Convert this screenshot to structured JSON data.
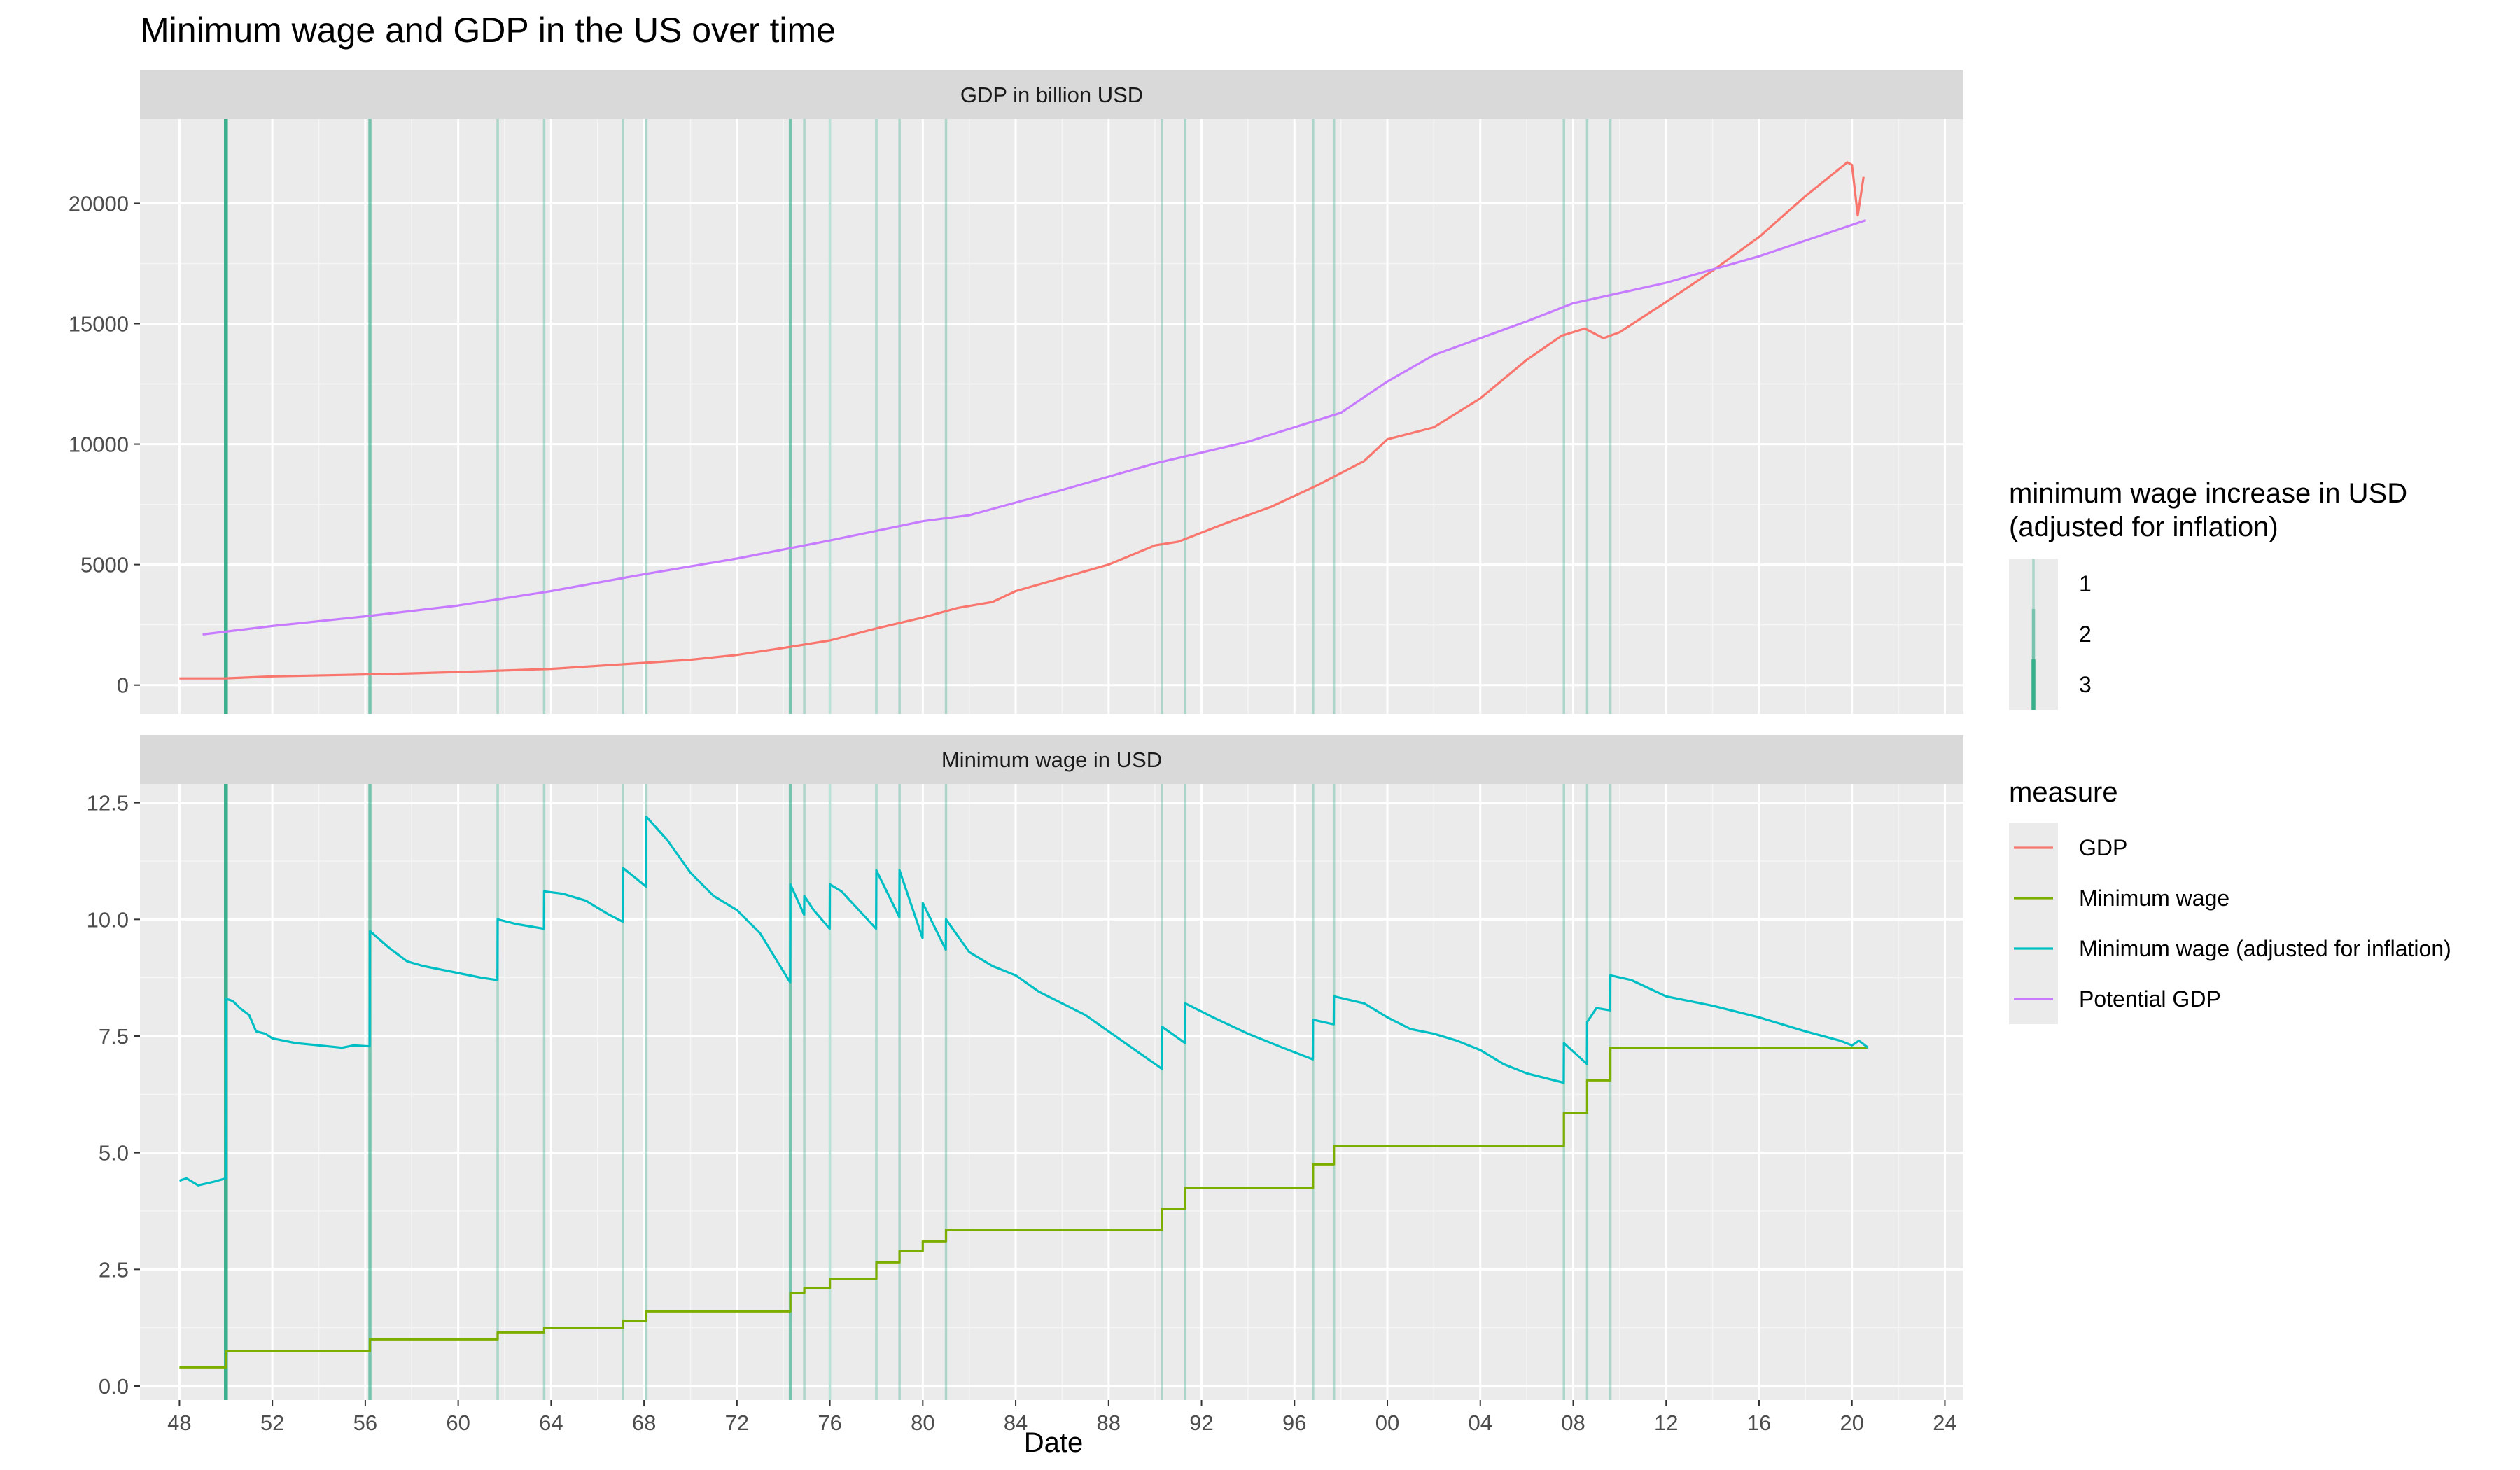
{
  "chart_data": {
    "type": "line",
    "title": "Minimum wage and GDP in the US over time",
    "xlabel": "Date",
    "x_ticks": [
      "48",
      "52",
      "56",
      "60",
      "64",
      "68",
      "72",
      "76",
      "80",
      "84",
      "88",
      "92",
      "96",
      "00",
      "04",
      "08",
      "12",
      "16",
      "20",
      "24"
    ],
    "x_tick_years": [
      1948,
      1952,
      1956,
      1960,
      1964,
      1968,
      1972,
      1976,
      1980,
      1984,
      1988,
      1992,
      1996,
      2000,
      2004,
      2008,
      2012,
      2016,
      2020,
      2024
    ],
    "xlim": [
      1946.3,
      2024.8
    ],
    "panels": [
      {
        "strip": "GDP in billion USD",
        "ylim": [
          -1200,
          23500
        ],
        "y_ticks": [
          0,
          5000,
          10000,
          15000,
          20000
        ],
        "y_tick_labels": [
          "0",
          "5000",
          "10000",
          "15000",
          "20000"
        ]
      },
      {
        "strip": "Minimum wage in USD",
        "ylim": [
          -0.3,
          12.9
        ],
        "y_ticks": [
          0,
          2.5,
          5,
          7.5,
          10,
          12.5
        ],
        "y_tick_labels": [
          "0.0",
          "2.5",
          "5.0",
          "7.5",
          "10.0",
          "12.5"
        ]
      }
    ],
    "series": [
      {
        "name": "GDP",
        "color": "#F8766D",
        "panel": 0,
        "points": [
          [
            1948.0,
            275
          ],
          [
            1950.0,
            280
          ],
          [
            1952.0,
            360
          ],
          [
            1955.0,
            420
          ],
          [
            1957.5,
            470
          ],
          [
            1960.0,
            540
          ],
          [
            1964.0,
            670
          ],
          [
            1968.0,
            920
          ],
          [
            1970.0,
            1050
          ],
          [
            1972.0,
            1250
          ],
          [
            1974.0,
            1540
          ],
          [
            1976.0,
            1850
          ],
          [
            1978.0,
            2350
          ],
          [
            1980.0,
            2800
          ],
          [
            1981.5,
            3200
          ],
          [
            1983.0,
            3450
          ],
          [
            1984.0,
            3900
          ],
          [
            1986.0,
            4450
          ],
          [
            1988.0,
            5000
          ],
          [
            1990.0,
            5800
          ],
          [
            1991.0,
            5950
          ],
          [
            1993.0,
            6700
          ],
          [
            1995.0,
            7400
          ],
          [
            1997.0,
            8300
          ],
          [
            1999.0,
            9300
          ],
          [
            2000.0,
            10200
          ],
          [
            2002.0,
            10700
          ],
          [
            2004.0,
            11900
          ],
          [
            2006.0,
            13500
          ],
          [
            2007.5,
            14500
          ],
          [
            2008.5,
            14800
          ],
          [
            2009.3,
            14400
          ],
          [
            2010.0,
            14650
          ],
          [
            2012.0,
            15900
          ],
          [
            2014.0,
            17200
          ],
          [
            2016.0,
            18600
          ],
          [
            2018.0,
            20300
          ],
          [
            2019.8,
            21700
          ],
          [
            2020.0,
            21600
          ],
          [
            2020.25,
            19500
          ],
          [
            2020.5,
            21100
          ]
        ]
      },
      {
        "name": "Potential GDP",
        "color": "#C77CFF",
        "panel": 0,
        "points": [
          [
            1949.0,
            2100
          ],
          [
            1952.0,
            2450
          ],
          [
            1956.0,
            2850
          ],
          [
            1960.0,
            3300
          ],
          [
            1964.0,
            3900
          ],
          [
            1968.0,
            4600
          ],
          [
            1972.0,
            5250
          ],
          [
            1976.0,
            6000
          ],
          [
            1980.0,
            6800
          ],
          [
            1982.0,
            7050
          ],
          [
            1986.0,
            8100
          ],
          [
            1990.0,
            9200
          ],
          [
            1994.0,
            10100
          ],
          [
            1998.0,
            11300
          ],
          [
            2000.0,
            12600
          ],
          [
            2002.0,
            13700
          ],
          [
            2006.0,
            15100
          ],
          [
            2008.0,
            15850
          ],
          [
            2012.0,
            16700
          ],
          [
            2016.0,
            17800
          ],
          [
            2020.6,
            19300
          ]
        ]
      },
      {
        "name": "Minimum wage",
        "color": "#7CAE00",
        "panel": 1,
        "step": true,
        "points": [
          [
            1948.0,
            0.4
          ],
          [
            1950.0,
            0.75
          ],
          [
            1956.2,
            1.0
          ],
          [
            1961.7,
            1.15
          ],
          [
            1963.7,
            1.25
          ],
          [
            1967.1,
            1.4
          ],
          [
            1968.1,
            1.6
          ],
          [
            1974.3,
            2.0
          ],
          [
            1974.9,
            2.1
          ],
          [
            1976.0,
            2.3
          ],
          [
            1978.0,
            2.65
          ],
          [
            1979.0,
            2.9
          ],
          [
            1980.0,
            3.1
          ],
          [
            1981.0,
            3.35
          ],
          [
            1990.3,
            3.8
          ],
          [
            1991.3,
            4.25
          ],
          [
            1996.8,
            4.75
          ],
          [
            1997.7,
            5.15
          ],
          [
            2007.6,
            5.85
          ],
          [
            2008.6,
            6.55
          ],
          [
            2009.6,
            7.25
          ],
          [
            2020.7,
            7.25
          ]
        ]
      },
      {
        "name": "Minimum wage (adjusted for inflation)",
        "color": "#00BFC4",
        "panel": 1,
        "points": [
          [
            1948.0,
            4.4
          ],
          [
            1948.3,
            4.45
          ],
          [
            1948.8,
            4.3
          ],
          [
            1949.5,
            4.38
          ],
          [
            1949.99,
            4.45
          ],
          [
            1950.0,
            8.3
          ],
          [
            1950.3,
            8.25
          ],
          [
            1950.6,
            8.1
          ],
          [
            1951.0,
            7.95
          ],
          [
            1951.3,
            7.6
          ],
          [
            1951.7,
            7.55
          ],
          [
            1952.0,
            7.45
          ],
          [
            1952.5,
            7.4
          ],
          [
            1953.0,
            7.35
          ],
          [
            1954.0,
            7.3
          ],
          [
            1955.0,
            7.25
          ],
          [
            1955.5,
            7.3
          ],
          [
            1956.19,
            7.28
          ],
          [
            1956.2,
            9.75
          ],
          [
            1957.0,
            9.4
          ],
          [
            1957.8,
            9.1
          ],
          [
            1958.5,
            9.0
          ],
          [
            1959.0,
            8.95
          ],
          [
            1960.0,
            8.85
          ],
          [
            1961.0,
            8.75
          ],
          [
            1961.69,
            8.7
          ],
          [
            1961.7,
            10.0
          ],
          [
            1962.5,
            9.9
          ],
          [
            1963.69,
            9.8
          ],
          [
            1963.7,
            10.6
          ],
          [
            1964.5,
            10.55
          ],
          [
            1965.5,
            10.4
          ],
          [
            1966.5,
            10.1
          ],
          [
            1967.09,
            9.95
          ],
          [
            1967.1,
            11.1
          ],
          [
            1967.6,
            10.9
          ],
          [
            1968.09,
            10.7
          ],
          [
            1968.1,
            12.2
          ],
          [
            1969.0,
            11.7
          ],
          [
            1970.0,
            11.0
          ],
          [
            1971.0,
            10.5
          ],
          [
            1972.0,
            10.2
          ],
          [
            1973.0,
            9.7
          ],
          [
            1974.29,
            8.65
          ],
          [
            1974.3,
            10.75
          ],
          [
            1974.89,
            10.1
          ],
          [
            1974.9,
            10.5
          ],
          [
            1975.3,
            10.2
          ],
          [
            1975.99,
            9.8
          ],
          [
            1976.0,
            10.75
          ],
          [
            1976.5,
            10.6
          ],
          [
            1977.99,
            9.8
          ],
          [
            1978.0,
            11.05
          ],
          [
            1978.99,
            10.05
          ],
          [
            1979.0,
            11.05
          ],
          [
            1979.99,
            9.6
          ],
          [
            1980.0,
            10.35
          ],
          [
            1980.99,
            9.35
          ],
          [
            1981.0,
            10.0
          ],
          [
            1982.0,
            9.3
          ],
          [
            1983.0,
            9.0
          ],
          [
            1984.0,
            8.8
          ],
          [
            1985.0,
            8.45
          ],
          [
            1986.0,
            8.2
          ],
          [
            1987.0,
            7.95
          ],
          [
            1988.0,
            7.6
          ],
          [
            1989.0,
            7.25
          ],
          [
            1990.29,
            6.8
          ],
          [
            1990.3,
            7.7
          ],
          [
            1991.29,
            7.35
          ],
          [
            1991.3,
            8.2
          ],
          [
            1992.5,
            7.9
          ],
          [
            1994.0,
            7.55
          ],
          [
            1995.5,
            7.25
          ],
          [
            1996.79,
            7.0
          ],
          [
            1996.8,
            7.85
          ],
          [
            1997.69,
            7.75
          ],
          [
            1997.7,
            8.35
          ],
          [
            1999.0,
            8.2
          ],
          [
            2000.0,
            7.9
          ],
          [
            2001.0,
            7.65
          ],
          [
            2002.0,
            7.55
          ],
          [
            2003.0,
            7.4
          ],
          [
            2004.0,
            7.2
          ],
          [
            2005.0,
            6.9
          ],
          [
            2006.0,
            6.7
          ],
          [
            2007.59,
            6.5
          ],
          [
            2007.6,
            7.35
          ],
          [
            2008.59,
            6.9
          ],
          [
            2008.6,
            7.8
          ],
          [
            2009.0,
            8.1
          ],
          [
            2009.59,
            8.05
          ],
          [
            2009.6,
            8.8
          ],
          [
            2010.5,
            8.7
          ],
          [
            2012.0,
            8.35
          ],
          [
            2014.0,
            8.15
          ],
          [
            2016.0,
            7.9
          ],
          [
            2018.0,
            7.6
          ],
          [
            2019.5,
            7.4
          ],
          [
            2020.0,
            7.3
          ],
          [
            2020.3,
            7.4
          ],
          [
            2020.7,
            7.25
          ]
        ]
      }
    ],
    "vlines": [
      {
        "x": 1950.0,
        "level": 3
      },
      {
        "x": 1956.2,
        "level": 2
      },
      {
        "x": 1961.7,
        "level": 1
      },
      {
        "x": 1963.7,
        "level": 1
      },
      {
        "x": 1967.1,
        "level": 1
      },
      {
        "x": 1968.1,
        "level": 1
      },
      {
        "x": 1974.3,
        "level": 2
      },
      {
        "x": 1974.9,
        "level": 1
      },
      {
        "x": 1976.0,
        "level": 1
      },
      {
        "x": 1978.0,
        "level": 1
      },
      {
        "x": 1979.0,
        "level": 1
      },
      {
        "x": 1981.0,
        "level": 1
      },
      {
        "x": 1990.3,
        "level": 1
      },
      {
        "x": 1991.3,
        "level": 1
      },
      {
        "x": 1996.8,
        "level": 1
      },
      {
        "x": 1997.7,
        "level": 1
      },
      {
        "x": 2007.6,
        "level": 1
      },
      {
        "x": 2008.6,
        "level": 1
      },
      {
        "x": 2009.6,
        "level": 1
      }
    ],
    "legends": [
      {
        "title_lines": [
          "minimum wage increase in USD",
          "(adjusted for inflation)"
        ],
        "entries": [
          "1",
          "2",
          "3"
        ]
      },
      {
        "title_lines": [
          "measure"
        ],
        "entries": [
          "GDP",
          "Minimum wage",
          "Minimum wage (adjusted for inflation)",
          "Potential GDP"
        ]
      }
    ],
    "legend_position": "right",
    "grid": true,
    "colors": {
      "panel_bg": "#EBEBEB",
      "strip_bg": "#D9D9D9",
      "grid_major": "#FFFFFF",
      "vline": "#1AA37A"
    }
  }
}
